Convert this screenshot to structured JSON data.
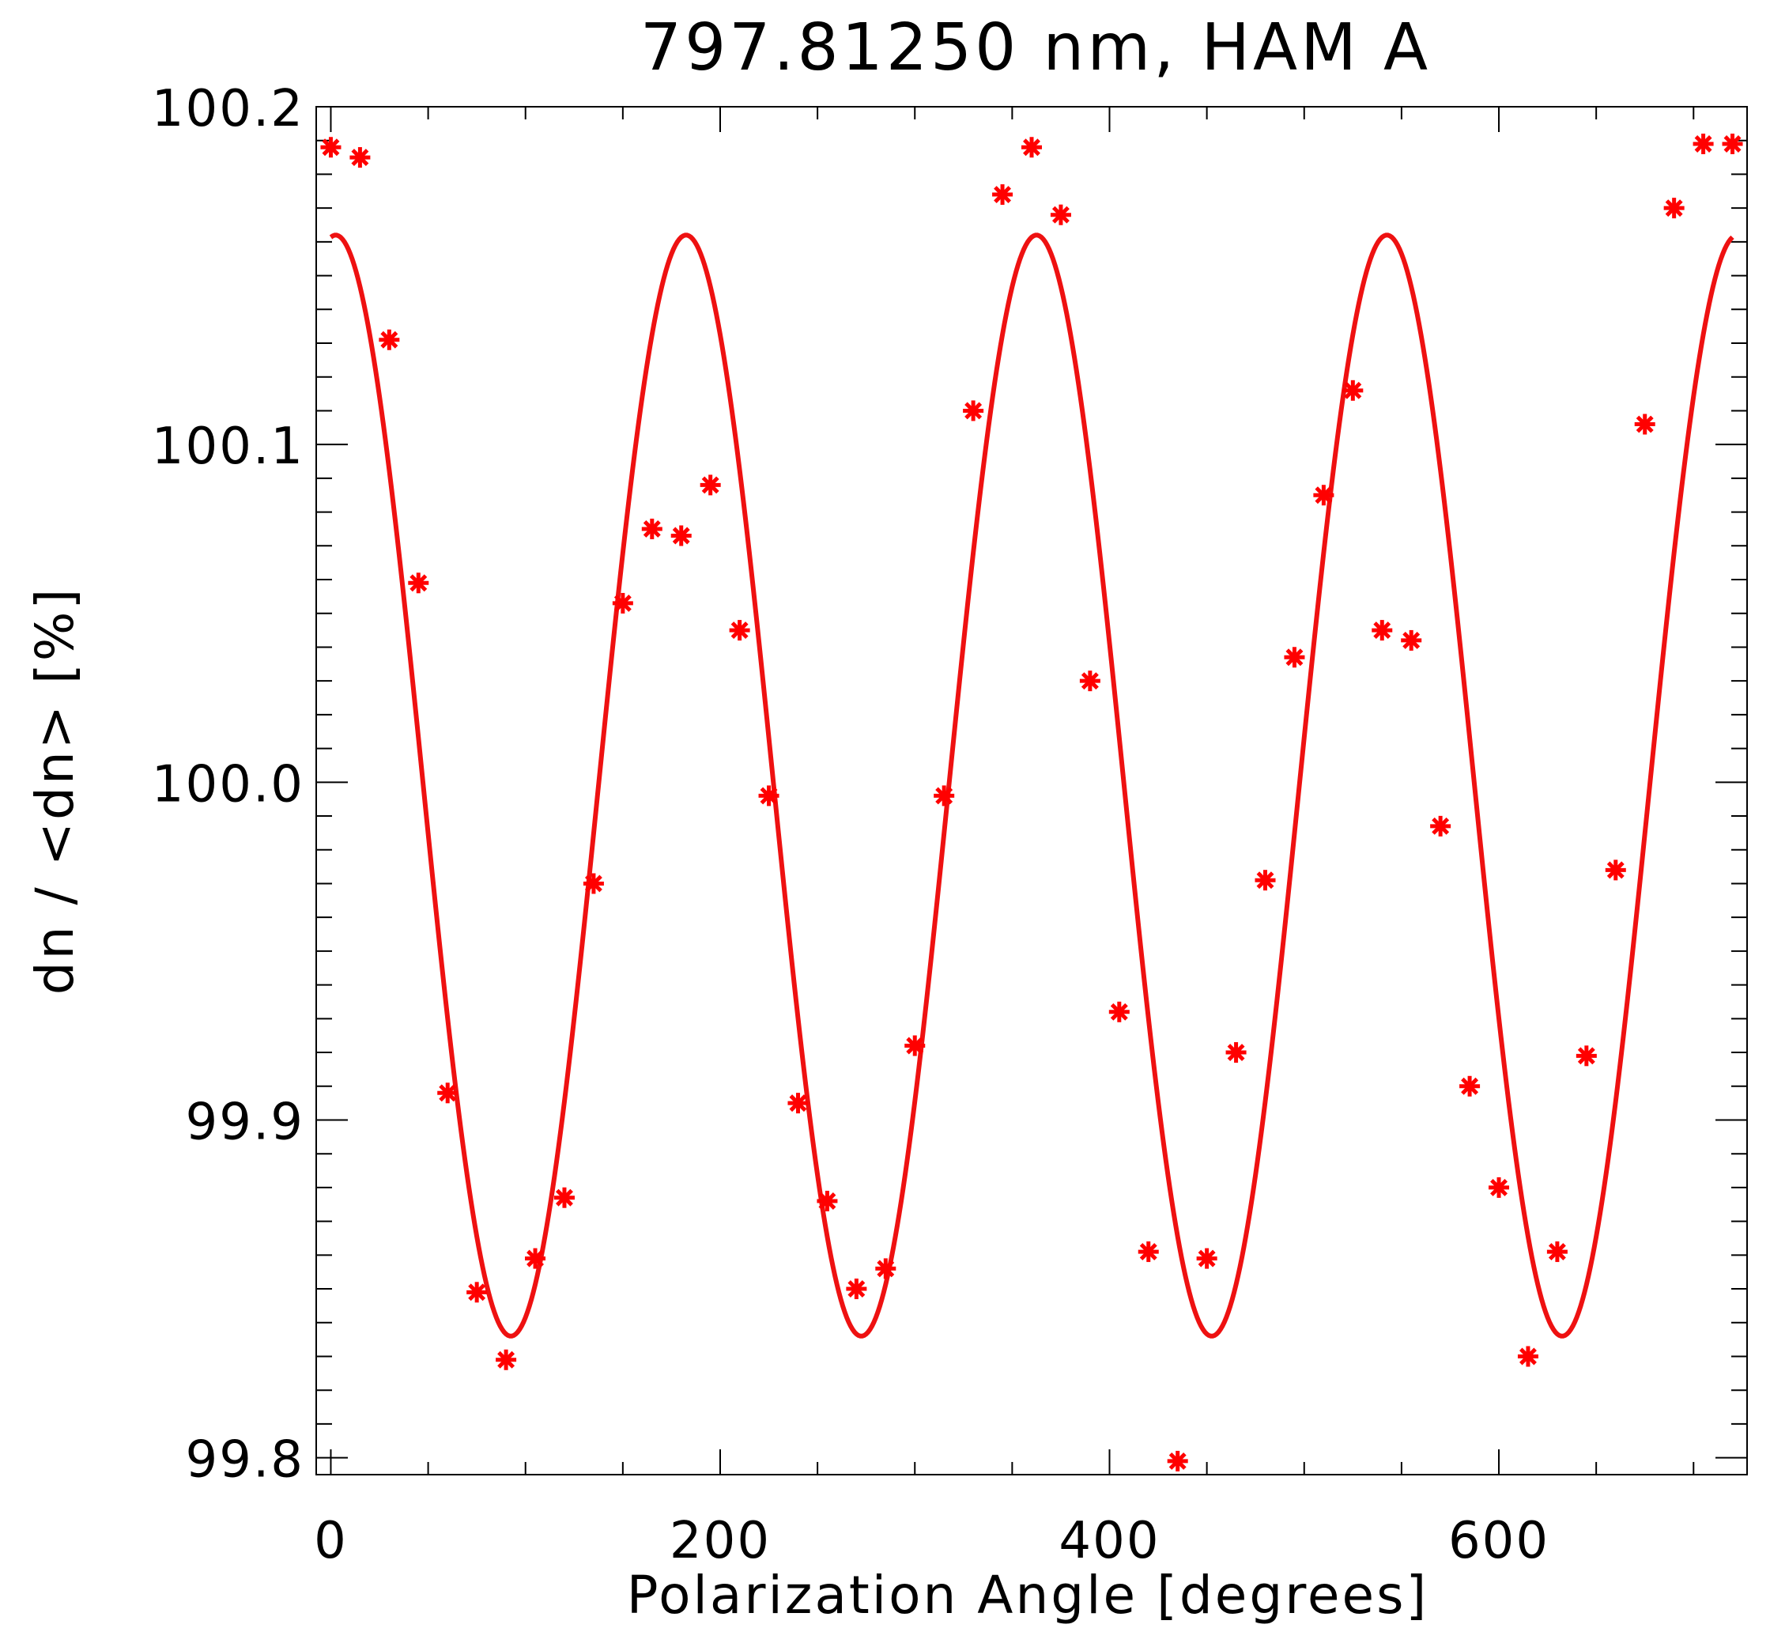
{
  "chart_data": {
    "type": "scatter",
    "title": "797.81250 nm, HAM A",
    "xlabel": "Polarization Angle [degrees]",
    "ylabel": "dn / <dn> [%]",
    "xlim": [
      -7.5,
      727.5
    ],
    "ylim": [
      99.795,
      100.2
    ],
    "x_ticks": [
      0,
      200,
      400,
      600
    ],
    "x_tick_labels": [
      "0",
      "200",
      "400",
      "600"
    ],
    "x_minor_step": 50,
    "y_ticks": [
      99.8,
      99.9,
      100.0,
      100.1,
      100.2
    ],
    "y_tick_labels": [
      "99.8",
      "99.9",
      "100.0",
      "100.1",
      "100.2"
    ],
    "y_minor_step": 0.01,
    "grid": false,
    "marker_color": "#ff0000",
    "line_color": "#ee1111",
    "series": [
      {
        "type": "scatter",
        "marker": "asterisk",
        "x": [
          0,
          15,
          30,
          45,
          60,
          75,
          90,
          105,
          120,
          135,
          150,
          165,
          180,
          195,
          210,
          225,
          240,
          255,
          270,
          285,
          300,
          315,
          330,
          345,
          360,
          375,
          390,
          405,
          420,
          435,
          450,
          465,
          480,
          495,
          510,
          525,
          540,
          555,
          570,
          585,
          600,
          615,
          630,
          645,
          660,
          675,
          690,
          705,
          720
        ],
        "y": [
          100.188,
          100.185,
          100.131,
          100.059,
          99.908,
          99.849,
          99.829,
          99.859,
          99.877,
          99.97,
          100.053,
          100.075,
          100.073,
          100.088,
          100.045,
          99.996,
          99.905,
          99.876,
          99.85,
          99.856,
          99.922,
          99.996,
          100.11,
          100.174,
          100.188,
          100.168,
          100.03,
          99.932,
          99.861,
          99.799,
          99.859,
          99.92,
          99.971,
          100.037,
          100.085,
          100.116,
          100.045,
          100.042,
          99.987,
          99.91,
          99.88,
          99.83,
          99.861,
          99.919,
          99.974,
          100.106,
          100.17,
          100.189,
          100.189
        ]
      },
      {
        "type": "line",
        "model": "cos2",
        "mean": 99.999,
        "amplitude": 0.163,
        "phase_deg": 2.5,
        "x_range": [
          0,
          720
        ]
      }
    ]
  }
}
